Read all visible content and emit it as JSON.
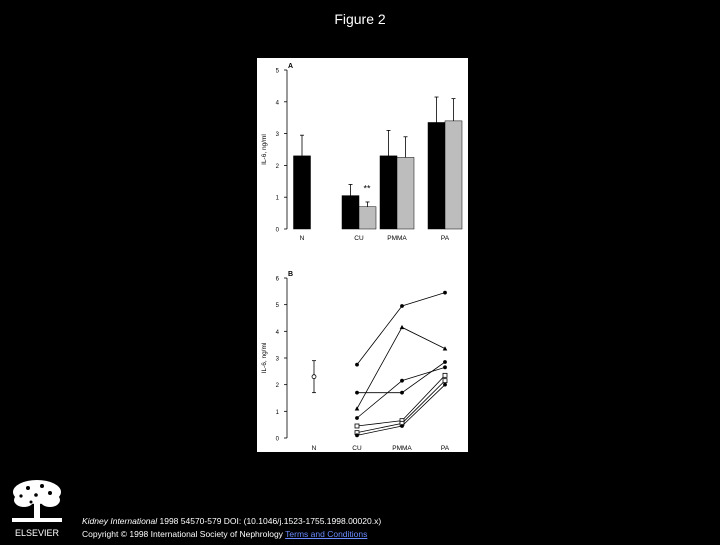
{
  "page": {
    "title": "Figure 2",
    "publisher": "ELSEVIER",
    "citation_journal": "Kidney International",
    "citation_rest": " 1998 54570-579 DOI: (10.1046/j.1523-1755.1998.00020.x)",
    "copyright": "Copyright © 1998 International Society of Nephrology ",
    "terms_link": "Terms and Conditions"
  },
  "chart_data": [
    {
      "type": "bar",
      "panel_label": "A",
      "ylabel": "IL-6, ng/ml",
      "ylim": [
        0,
        5
      ],
      "yticks": [
        0,
        1,
        2,
        3,
        4,
        5
      ],
      "categories": [
        "N",
        "CU",
        "PMMA",
        "PA"
      ],
      "series": [
        {
          "color": "#000000",
          "values": [
            2.3,
            1.05,
            2.3,
            3.35
          ],
          "errors": [
            0.65,
            0.35,
            0.8,
            0.8
          ]
        },
        {
          "color": "#bdbdbd",
          "values": [
            null,
            0.7,
            2.25,
            3.4
          ],
          "errors": [
            null,
            0.15,
            0.65,
            0.7
          ]
        }
      ],
      "annotations": [
        {
          "category": "CU",
          "text": "**"
        }
      ]
    },
    {
      "type": "line",
      "panel_label": "B",
      "ylabel": "IL-6, ng/ml",
      "ylim": [
        0,
        6
      ],
      "yticks": [
        0,
        1,
        2,
        3,
        4,
        5,
        6
      ],
      "categories": [
        "N",
        "CU",
        "PMMA",
        "PA"
      ],
      "reference_point": {
        "category": "N",
        "value": 2.3,
        "error": 0.6
      },
      "series": [
        {
          "marker": "circle",
          "values": [
            null,
            2.75,
            4.95,
            5.45
          ]
        },
        {
          "marker": "triangle",
          "values": [
            null,
            1.1,
            4.15,
            3.35
          ]
        },
        {
          "marker": "circle",
          "values": [
            null,
            1.7,
            1.7,
            2.85
          ]
        },
        {
          "marker": "circle",
          "values": [
            null,
            0.75,
            2.15,
            2.65
          ]
        },
        {
          "marker": "square",
          "values": [
            null,
            0.45,
            0.65,
            2.35
          ]
        },
        {
          "marker": "square",
          "values": [
            null,
            0.2,
            0.55,
            2.15
          ]
        },
        {
          "marker": "circle",
          "values": [
            null,
            0.1,
            0.45,
            2.0
          ]
        }
      ]
    }
  ]
}
